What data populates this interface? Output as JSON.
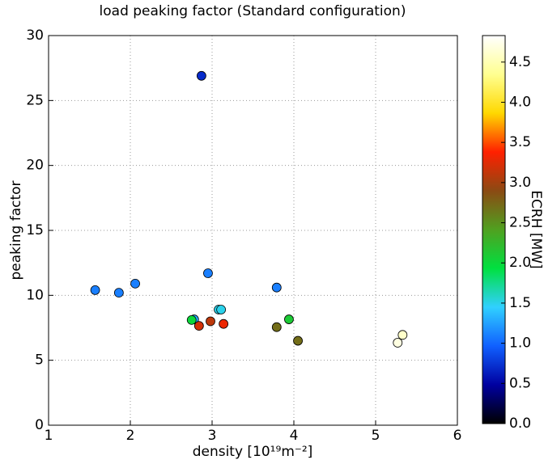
{
  "chart_data": {
    "type": "scatter",
    "title": "load peaking factor (Standard configuration)",
    "xlabel": "density [10¹⁹m⁻²]",
    "ylabel": "peaking factor",
    "colorbar_label": "ECRH [MW]",
    "x": [
      2.87,
      1.57,
      1.86,
      2.06,
      2.95,
      3.79,
      3.08,
      3.11,
      2.78,
      2.75,
      2.84,
      2.98,
      3.14,
      3.79,
      3.94,
      4.05,
      5.27,
      5.33
    ],
    "values": [
      26.9,
      10.4,
      10.2,
      10.9,
      11.7,
      10.6,
      8.9,
      8.9,
      8.15,
      8.1,
      7.65,
      8.0,
      7.8,
      7.55,
      8.15,
      6.5,
      6.35,
      6.95
    ],
    "c": [
      0.7,
      1.1,
      1.1,
      1.1,
      1.1,
      1.1,
      1.5,
      1.5,
      1.3,
      2.0,
      3.2,
      3.1,
      3.3,
      2.7,
      2.1,
      2.7,
      4.7,
      4.6
    ],
    "xlim": [
      1,
      6
    ],
    "xticks": [
      1,
      2,
      3,
      4,
      5,
      6
    ],
    "ylim": [
      0,
      30
    ],
    "yticks": [
      0,
      5,
      10,
      15,
      20,
      25,
      30
    ],
    "clim": [
      0,
      4.83
    ],
    "cticks": [
      {
        "value": 0,
        "label": "0.0"
      },
      {
        "value": 0.5,
        "label": "0.5"
      },
      {
        "value": 1,
        "label": "1.0"
      },
      {
        "value": 1.5,
        "label": "1.5"
      },
      {
        "value": 2,
        "label": "2.0"
      },
      {
        "value": 2.5,
        "label": "2.5"
      },
      {
        "value": 3,
        "label": "3.0"
      },
      {
        "value": 3.5,
        "label": "3.5"
      },
      {
        "value": 4,
        "label": "4.0"
      },
      {
        "value": 4.5,
        "label": "4.5"
      }
    ],
    "cmap": [
      "#000000",
      "#0000a0",
      "#1060ff",
      "#30d0ff",
      "#00e040",
      "#50a020",
      "#8b4a13",
      "#ff2000",
      "#ffd800",
      "#ffff90",
      "#ffffff"
    ],
    "grid": true
  }
}
